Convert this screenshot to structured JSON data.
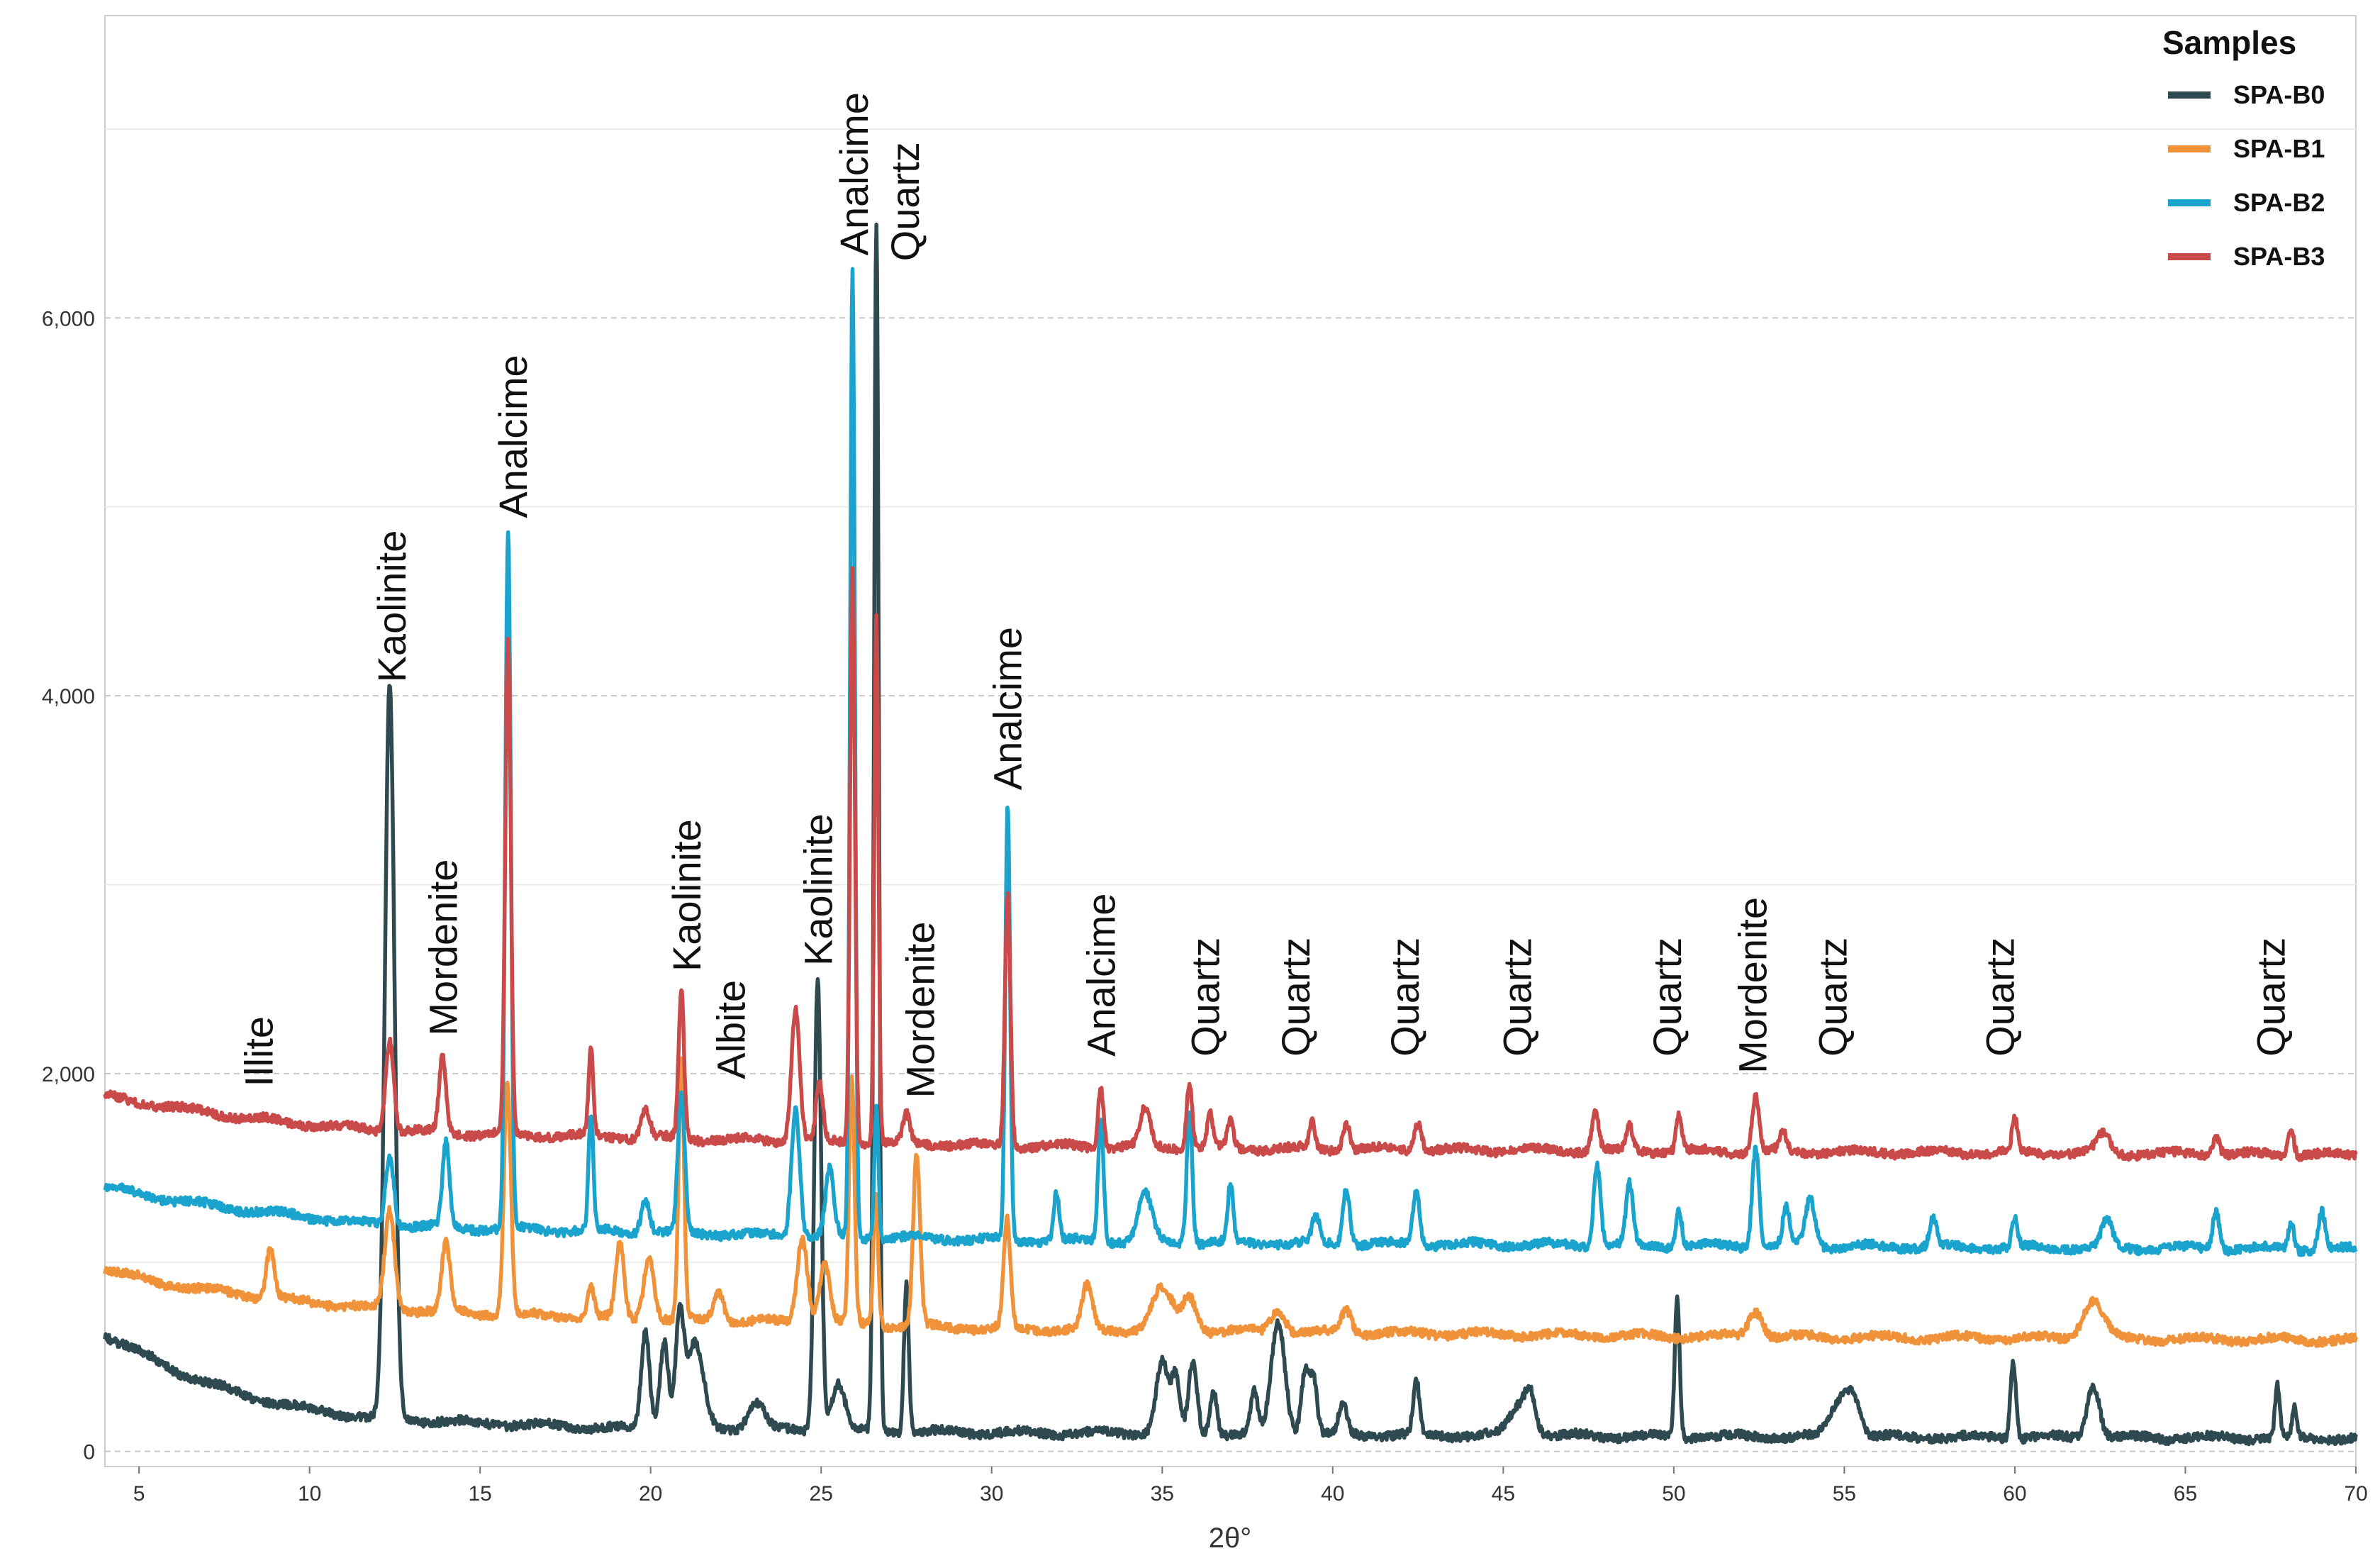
{
  "chart_data": {
    "type": "line",
    "title": "",
    "xlabel": "2θ°",
    "ylabel": "",
    "xlim": [
      4,
      70
    ],
    "ylim": [
      -80,
      7600
    ],
    "x_ticks": [
      5,
      10,
      15,
      20,
      25,
      30,
      35,
      40,
      45,
      50,
      55,
      60,
      65,
      70
    ],
    "y_ticks": [
      0,
      2000,
      4000,
      6000
    ],
    "y_tick_labels": [
      "0",
      "2,000",
      "4,000",
      "6,000"
    ],
    "x_tick_labels": [
      "5",
      "10",
      "15",
      "20",
      "25",
      "30",
      "35",
      "40",
      "45",
      "50",
      "55",
      "60",
      "65",
      "70"
    ],
    "legend": {
      "title": "Samples",
      "position": "top-right",
      "entries": [
        "SPA-B0",
        "SPA-B1",
        "SPA-B2",
        "SPA-B3"
      ]
    },
    "series": [
      {
        "name": "SPA-B0",
        "color": "#2e4a50",
        "baseline": [
          [
            4,
            620
          ],
          [
            6,
            430
          ],
          [
            8,
            300
          ],
          [
            10,
            220
          ],
          [
            12,
            175
          ],
          [
            15,
            150
          ],
          [
            18,
            130
          ],
          [
            20,
            120
          ],
          [
            25,
            110
          ],
          [
            30,
            100
          ],
          [
            40,
            90
          ],
          [
            50,
            80
          ],
          [
            60,
            75
          ],
          [
            70,
            70
          ]
        ],
        "peaks": [
          [
            12.35,
            3880,
            0.14
          ],
          [
            19.85,
            520,
            0.12
          ],
          [
            20.4,
            480,
            0.12
          ],
          [
            20.85,
            560,
            0.12
          ],
          [
            21.3,
            450,
            0.25
          ],
          [
            23.1,
            150,
            0.25
          ],
          [
            24.9,
            2400,
            0.1
          ],
          [
            25.5,
            250,
            0.2
          ],
          [
            26.62,
            6400,
            0.07
          ],
          [
            27.5,
            800,
            0.07
          ],
          [
            35.0,
            380,
            0.18
          ],
          [
            35.4,
            280,
            0.12
          ],
          [
            35.9,
            380,
            0.12
          ],
          [
            36.5,
            240,
            0.1
          ],
          [
            37.7,
            220,
            0.1
          ],
          [
            38.4,
            590,
            0.2
          ],
          [
            39.2,
            350,
            0.12
          ],
          [
            39.45,
            270,
            0.1
          ],
          [
            40.3,
            150,
            0.12
          ],
          [
            42.45,
            280,
            0.09
          ],
          [
            45.5,
            160,
            0.3
          ],
          [
            45.8,
            160,
            0.15
          ],
          [
            50.1,
            740,
            0.07
          ],
          [
            54.9,
            200,
            0.3
          ],
          [
            55.3,
            150,
            0.2
          ],
          [
            59.95,
            420,
            0.08
          ],
          [
            62.3,
            280,
            0.18
          ],
          [
            67.7,
            270,
            0.07
          ],
          [
            68.2,
            150,
            0.07
          ]
        ]
      },
      {
        "name": "SPA-B1",
        "color": "#f0923a",
        "baseline": [
          [
            4,
            960
          ],
          [
            6,
            880
          ],
          [
            8,
            830
          ],
          [
            10,
            790
          ],
          [
            12,
            760
          ],
          [
            15,
            730
          ],
          [
            18,
            710
          ],
          [
            20,
            700
          ],
          [
            25,
            680
          ],
          [
            30,
            650
          ],
          [
            40,
            630
          ],
          [
            50,
            610
          ],
          [
            60,
            600
          ],
          [
            70,
            590
          ]
        ],
        "peaks": [
          [
            8.85,
            260,
            0.12
          ],
          [
            12.35,
            520,
            0.14
          ],
          [
            14.0,
            360,
            0.12
          ],
          [
            15.8,
            1250,
            0.1
          ],
          [
            18.25,
            160,
            0.1
          ],
          [
            19.1,
            400,
            0.12
          ],
          [
            19.95,
            330,
            0.15
          ],
          [
            20.9,
            1360,
            0.08
          ],
          [
            22.0,
            150,
            0.15
          ],
          [
            24.45,
            450,
            0.15
          ],
          [
            25.1,
            320,
            0.15
          ],
          [
            25.9,
            1300,
            0.08
          ],
          [
            26.6,
            700,
            0.07
          ],
          [
            27.8,
            900,
            0.1
          ],
          [
            30.45,
            570,
            0.1
          ],
          [
            32.8,
            230,
            0.15
          ],
          [
            35.0,
            220,
            0.3
          ],
          [
            35.8,
            180,
            0.2
          ],
          [
            38.4,
            120,
            0.2
          ],
          [
            40.4,
            120,
            0.15
          ],
          [
            52.4,
            140,
            0.2
          ],
          [
            62.3,
            200,
            0.3
          ]
        ]
      },
      {
        "name": "SPA-B2",
        "color": "#1aa3cd",
        "baseline": [
          [
            4,
            1400
          ],
          [
            6,
            1330
          ],
          [
            8,
            1280
          ],
          [
            10,
            1240
          ],
          [
            12,
            1200
          ],
          [
            15,
            1180
          ],
          [
            18,
            1170
          ],
          [
            20,
            1160
          ],
          [
            25,
            1140
          ],
          [
            30,
            1120
          ],
          [
            40,
            1100
          ],
          [
            50,
            1090
          ],
          [
            60,
            1080
          ],
          [
            70,
            1070
          ]
        ],
        "peaks": [
          [
            12.35,
            380,
            0.12
          ],
          [
            14.0,
            450,
            0.1
          ],
          [
            15.82,
            3700,
            0.08
          ],
          [
            18.25,
            620,
            0.07
          ],
          [
            19.85,
            180,
            0.12
          ],
          [
            20.9,
            720,
            0.1
          ],
          [
            24.25,
            680,
            0.12
          ],
          [
            25.25,
            350,
            0.12
          ],
          [
            25.92,
            5100,
            0.07
          ],
          [
            26.62,
            700,
            0.06
          ],
          [
            30.47,
            2300,
            0.07
          ],
          [
            31.9,
            250,
            0.08
          ],
          [
            33.2,
            650,
            0.08
          ],
          [
            34.5,
            250,
            0.2
          ],
          [
            35.8,
            700,
            0.08
          ],
          [
            37.0,
            300,
            0.08
          ],
          [
            39.5,
            150,
            0.1
          ],
          [
            40.4,
            300,
            0.1
          ],
          [
            42.45,
            280,
            0.1
          ],
          [
            47.75,
            430,
            0.1
          ],
          [
            48.7,
            320,
            0.1
          ],
          [
            50.15,
            200,
            0.08
          ],
          [
            52.4,
            530,
            0.1
          ],
          [
            53.3,
            200,
            0.1
          ],
          [
            54.0,
            250,
            0.15
          ],
          [
            57.6,
            150,
            0.1
          ],
          [
            60.0,
            150,
            0.08
          ],
          [
            62.7,
            150,
            0.15
          ],
          [
            65.9,
            200,
            0.1
          ],
          [
            68.1,
            150,
            0.08
          ],
          [
            69.0,
            200,
            0.1
          ]
        ]
      },
      {
        "name": "SPA-B3",
        "color": "#c94a48",
        "baseline": [
          [
            4,
            1880
          ],
          [
            6,
            1820
          ],
          [
            8,
            1770
          ],
          [
            10,
            1730
          ],
          [
            12,
            1700
          ],
          [
            15,
            1680
          ],
          [
            18,
            1670
          ],
          [
            20,
            1660
          ],
          [
            25,
            1640
          ],
          [
            30,
            1620
          ],
          [
            40,
            1600
          ],
          [
            50,
            1590
          ],
          [
            60,
            1580
          ],
          [
            70,
            1570
          ]
        ],
        "peaks": [
          [
            12.35,
            480,
            0.12
          ],
          [
            13.9,
            400,
            0.1
          ],
          [
            15.82,
            2620,
            0.08
          ],
          [
            18.25,
            460,
            0.07
          ],
          [
            19.85,
            150,
            0.12
          ],
          [
            20.9,
            780,
            0.08
          ],
          [
            24.25,
            700,
            0.12
          ],
          [
            24.95,
            300,
            0.1
          ],
          [
            25.92,
            3060,
            0.07
          ],
          [
            26.62,
            2800,
            0.06
          ],
          [
            27.5,
            150,
            0.1
          ],
          [
            30.47,
            1330,
            0.08
          ],
          [
            33.2,
            320,
            0.08
          ],
          [
            34.5,
            200,
            0.15
          ],
          [
            35.8,
            350,
            0.08
          ],
          [
            36.4,
            180,
            0.08
          ],
          [
            37.0,
            150,
            0.08
          ],
          [
            39.4,
            150,
            0.08
          ],
          [
            40.4,
            150,
            0.1
          ],
          [
            42.5,
            150,
            0.1
          ],
          [
            47.7,
            200,
            0.1
          ],
          [
            48.7,
            130,
            0.1
          ],
          [
            50.15,
            200,
            0.08
          ],
          [
            52.4,
            300,
            0.1
          ],
          [
            53.2,
            100,
            0.1
          ],
          [
            60.0,
            180,
            0.08
          ],
          [
            62.6,
            100,
            0.2
          ],
          [
            65.9,
            100,
            0.1
          ],
          [
            68.1,
            150,
            0.08
          ]
        ]
      }
    ],
    "annotations": [
      {
        "text": "Illite",
        "x": 8.5,
        "y": 1930
      },
      {
        "text": "Kaolinite",
        "x": 12.4,
        "y": 4070
      },
      {
        "text": "Mordenite",
        "x": 13.9,
        "y": 2200
      },
      {
        "text": "Analcime",
        "x": 15.95,
        "y": 4940
      },
      {
        "text": "Kaolinite",
        "x": 21.05,
        "y": 2540
      },
      {
        "text": "Albite",
        "x": 22.35,
        "y": 1970
      },
      {
        "text": "Kaolinite",
        "x": 24.9,
        "y": 2570
      },
      {
        "text": "Analcime",
        "x": 25.95,
        "y": 6330
      },
      {
        "text": "Quartz",
        "x": 27.45,
        "y": 6300
      },
      {
        "text": "Mordenite",
        "x": 27.9,
        "y": 1870
      },
      {
        "text": "Analcime",
        "x": 30.45,
        "y": 3500
      },
      {
        "text": "Analcime",
        "x": 33.2,
        "y": 2090
      },
      {
        "text": "Quartz",
        "x": 36.25,
        "y": 2090
      },
      {
        "text": "Quartz",
        "x": 38.9,
        "y": 2090
      },
      {
        "text": "Quartz",
        "x": 42.1,
        "y": 2090
      },
      {
        "text": "Quartz",
        "x": 45.4,
        "y": 2090
      },
      {
        "text": "Quartz",
        "x": 49.8,
        "y": 2090
      },
      {
        "text": "Mordenite",
        "x": 52.3,
        "y": 2000
      },
      {
        "text": "Quartz",
        "x": 54.65,
        "y": 2090
      },
      {
        "text": "Quartz",
        "x": 59.55,
        "y": 2090
      },
      {
        "text": "Quartz",
        "x": 67.5,
        "y": 2090
      }
    ]
  }
}
